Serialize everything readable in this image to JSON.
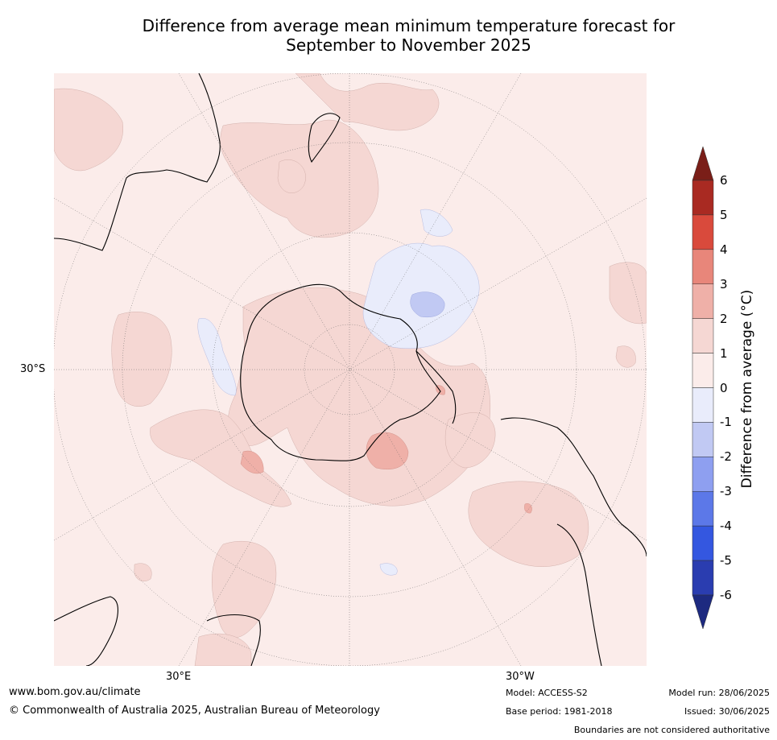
{
  "title_line1": "Difference from average mean minimum temperature forecast for",
  "title_line2": "September to November 2025",
  "labels": {
    "lat_30s": "30°S",
    "lon_30e": "30°E",
    "lon_30w": "30°W"
  },
  "colorbar": {
    "label": "Difference from average (°C)",
    "ticks": [
      "6",
      "5",
      "4",
      "3",
      "2",
      "1",
      "0",
      "-1",
      "-2",
      "-3",
      "-4",
      "-5",
      "-6"
    ],
    "colors": {
      "above6": "#7a1e18",
      "c5_6": "#a92a22",
      "c4_5": "#d94a3c",
      "c3_4": "#e8867a",
      "c2_3": "#efb0a8",
      "c1_2": "#f5d7d3",
      "c0_1": "#fbecea",
      "cm1_0": "#e9ecfb",
      "cm2_m1": "#c1c9f3",
      "cm3_m2": "#8e9ff0",
      "cm4_m3": "#5c78e8",
      "cm5_m4": "#3457e0",
      "cm6_m5": "#2a3db0",
      "below_m6": "#1d2a80"
    }
  },
  "footer": {
    "website": "www.bom.gov.au/climate",
    "copyright": "© Commonwealth of Australia 2025, Australian Bureau of Meteorology",
    "model": "Model: ACCESS-S2",
    "base_period": "Base period: 1981-2018",
    "model_run": "Model run: 28/06/2025",
    "issued": "Issued: 30/06/2025",
    "disclaimer": "Boundaries are not considered authoritative"
  }
}
